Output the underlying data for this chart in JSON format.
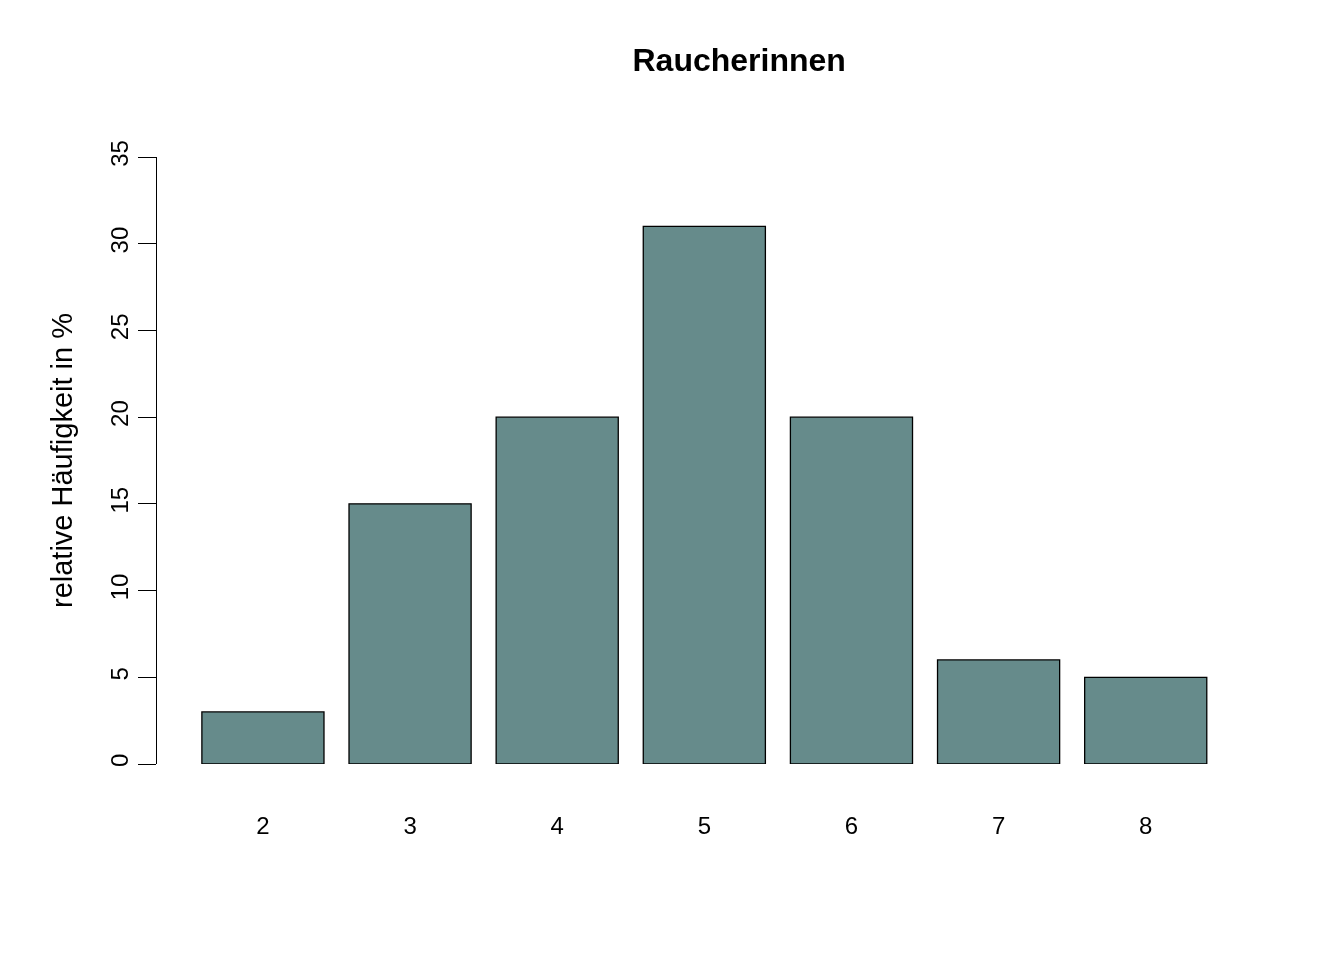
{
  "chart_data": {
    "type": "bar",
    "title": "Raucherinnen",
    "ylabel": "relative Häufigkeit in %",
    "categories": [
      "2",
      "3",
      "4",
      "5",
      "6",
      "7",
      "8"
    ],
    "values": [
      3,
      15,
      20,
      31,
      20,
      6,
      5
    ],
    "color": "#668b8b",
    "ylim": [
      0,
      35
    ],
    "yticks": [
      0,
      5,
      10,
      15,
      20,
      25,
      30,
      35
    ]
  }
}
